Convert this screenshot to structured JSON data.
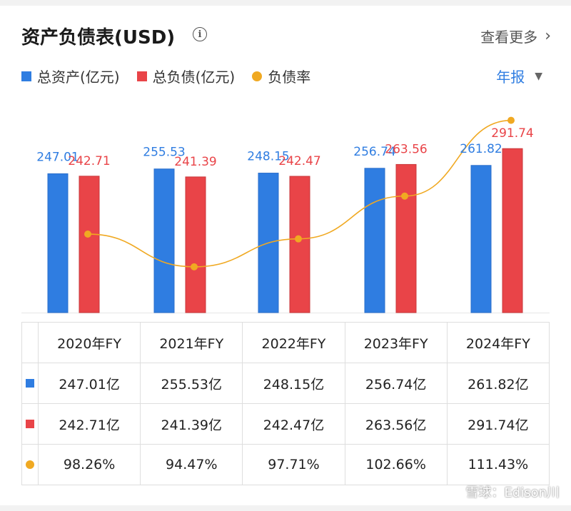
{
  "header": {
    "title": "资产负债表(USD)",
    "info_icon": "info-icon",
    "more_label": "查看更多",
    "period_label": "年报"
  },
  "legend": [
    {
      "label": "总资产(亿元)",
      "color": "#2f7de1",
      "shape": "square"
    },
    {
      "label": "总负债(亿元)",
      "color": "#e94448",
      "shape": "square"
    },
    {
      "label": "负债率",
      "color": "#f0a922",
      "shape": "dot"
    }
  ],
  "chart_data": {
    "type": "bar",
    "categories": [
      "2020年FY",
      "2021年FY",
      "2022年FY",
      "2023年FY",
      "2024年FY"
    ],
    "series": [
      {
        "name": "总资产(亿元)",
        "type": "bar",
        "color": "#2f7de1",
        "values": [
          247.01,
          255.53,
          248.15,
          256.74,
          261.82
        ],
        "labels": [
          "247.01",
          "255.53",
          "248.15",
          "256.74",
          "261.82"
        ]
      },
      {
        "name": "总负债(亿元)",
        "type": "bar",
        "color": "#e94448",
        "values": [
          242.71,
          241.39,
          242.47,
          263.56,
          291.74
        ],
        "labels": [
          "242.71",
          "241.39",
          "242.47",
          "263.56",
          "291.74"
        ]
      },
      {
        "name": "负债率",
        "type": "line",
        "color": "#f0a922",
        "values": [
          98.26,
          94.47,
          97.71,
          102.66,
          111.43
        ]
      }
    ],
    "grid": false
  },
  "table": {
    "headers": [
      "2020年FY",
      "2021年FY",
      "2022年FY",
      "2023年FY",
      "2024年FY"
    ],
    "rows": [
      {
        "color": "#2f7de1",
        "shape": "square",
        "cells": [
          "247.01亿",
          "255.53亿",
          "248.15亿",
          "256.74亿",
          "261.82亿"
        ]
      },
      {
        "color": "#e94448",
        "shape": "square",
        "cells": [
          "242.71亿",
          "241.39亿",
          "242.47亿",
          "263.56亿",
          "291.74亿"
        ]
      },
      {
        "color": "#f0a922",
        "shape": "dot",
        "cells": [
          "98.26%",
          "94.47%",
          "97.71%",
          "102.66%",
          "111.43%"
        ]
      }
    ]
  },
  "watermark": "雪球：Edison川"
}
